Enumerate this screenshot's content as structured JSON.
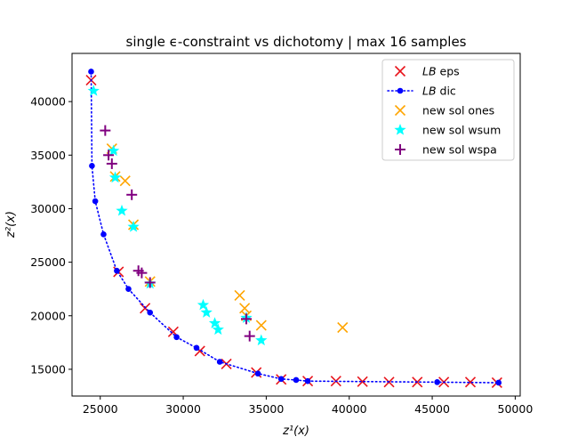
{
  "chart_data": {
    "type": "scatter",
    "title": "single ϵ-constraint vs dichotomy | max 16 samples",
    "xlabel": "z¹(x)",
    "ylabel": "z²(x)",
    "xlim": [
      23300,
      50300
    ],
    "ylim": [
      12500,
      44500
    ],
    "x_ticks": [
      25000,
      30000,
      35000,
      40000,
      45000,
      50000
    ],
    "y_ticks": [
      15000,
      20000,
      25000,
      30000,
      35000,
      40000
    ],
    "legend_position": "top-right",
    "grid": false,
    "series": [
      {
        "name": "LB eps",
        "label_italic": "LB",
        "label_rest": " eps",
        "marker": "x",
        "color": "#e8141c",
        "points": [
          [
            24450,
            42000
          ],
          [
            26100,
            24100
          ],
          [
            27700,
            20700
          ],
          [
            29400,
            18500
          ],
          [
            31000,
            16700
          ],
          [
            32600,
            15500
          ],
          [
            34400,
            14700
          ],
          [
            35900,
            14050
          ],
          [
            37500,
            13900
          ],
          [
            39200,
            13900
          ],
          [
            40800,
            13850
          ],
          [
            42400,
            13800
          ],
          [
            44100,
            13800
          ],
          [
            45700,
            13800
          ],
          [
            47300,
            13800
          ],
          [
            48900,
            13750
          ]
        ]
      },
      {
        "name": "LB dic",
        "label_italic": "LB",
        "label_rest": " dic",
        "marker": "dot",
        "line": "dotted",
        "color": "#0000ff",
        "points": [
          [
            24450,
            42800
          ],
          [
            24500,
            34000
          ],
          [
            24700,
            30700
          ],
          [
            25200,
            27600
          ],
          [
            26000,
            24200
          ],
          [
            26700,
            22500
          ],
          [
            28000,
            20300
          ],
          [
            29600,
            18000
          ],
          [
            30800,
            17000
          ],
          [
            32200,
            15700
          ],
          [
            34500,
            14600
          ],
          [
            35900,
            14100
          ],
          [
            36800,
            14000
          ],
          [
            37500,
            13900
          ],
          [
            45300,
            13800
          ],
          [
            49000,
            13750
          ]
        ]
      },
      {
        "name": "new sol ones",
        "marker": "x",
        "color": "#ffa500",
        "points": [
          [
            25700,
            35600
          ],
          [
            25900,
            33000
          ],
          [
            26500,
            32600
          ],
          [
            27000,
            28500
          ],
          [
            28000,
            23200
          ],
          [
            33400,
            21900
          ],
          [
            33700,
            20700
          ],
          [
            33800,
            20000
          ],
          [
            34700,
            19100
          ],
          [
            39600,
            18900
          ]
        ]
      },
      {
        "name": "new sol wsum",
        "marker": "star",
        "color": "#00ffff",
        "points": [
          [
            24600,
            41000
          ],
          [
            25800,
            35400
          ],
          [
            25900,
            32900
          ],
          [
            26300,
            29800
          ],
          [
            27000,
            28300
          ],
          [
            28000,
            23000
          ],
          [
            31200,
            21000
          ],
          [
            31400,
            20300
          ],
          [
            31900,
            19300
          ],
          [
            32100,
            18700
          ],
          [
            33800,
            19800
          ],
          [
            34700,
            17700
          ]
        ]
      },
      {
        "name": "new sol wspa",
        "marker": "plus",
        "color": "#800080",
        "points": [
          [
            25300,
            37300
          ],
          [
            25500,
            35000
          ],
          [
            25700,
            34200
          ],
          [
            26900,
            31300
          ],
          [
            27300,
            24200
          ],
          [
            27500,
            24000
          ],
          [
            28000,
            23100
          ],
          [
            33800,
            19700
          ],
          [
            34000,
            18100
          ]
        ]
      }
    ]
  }
}
